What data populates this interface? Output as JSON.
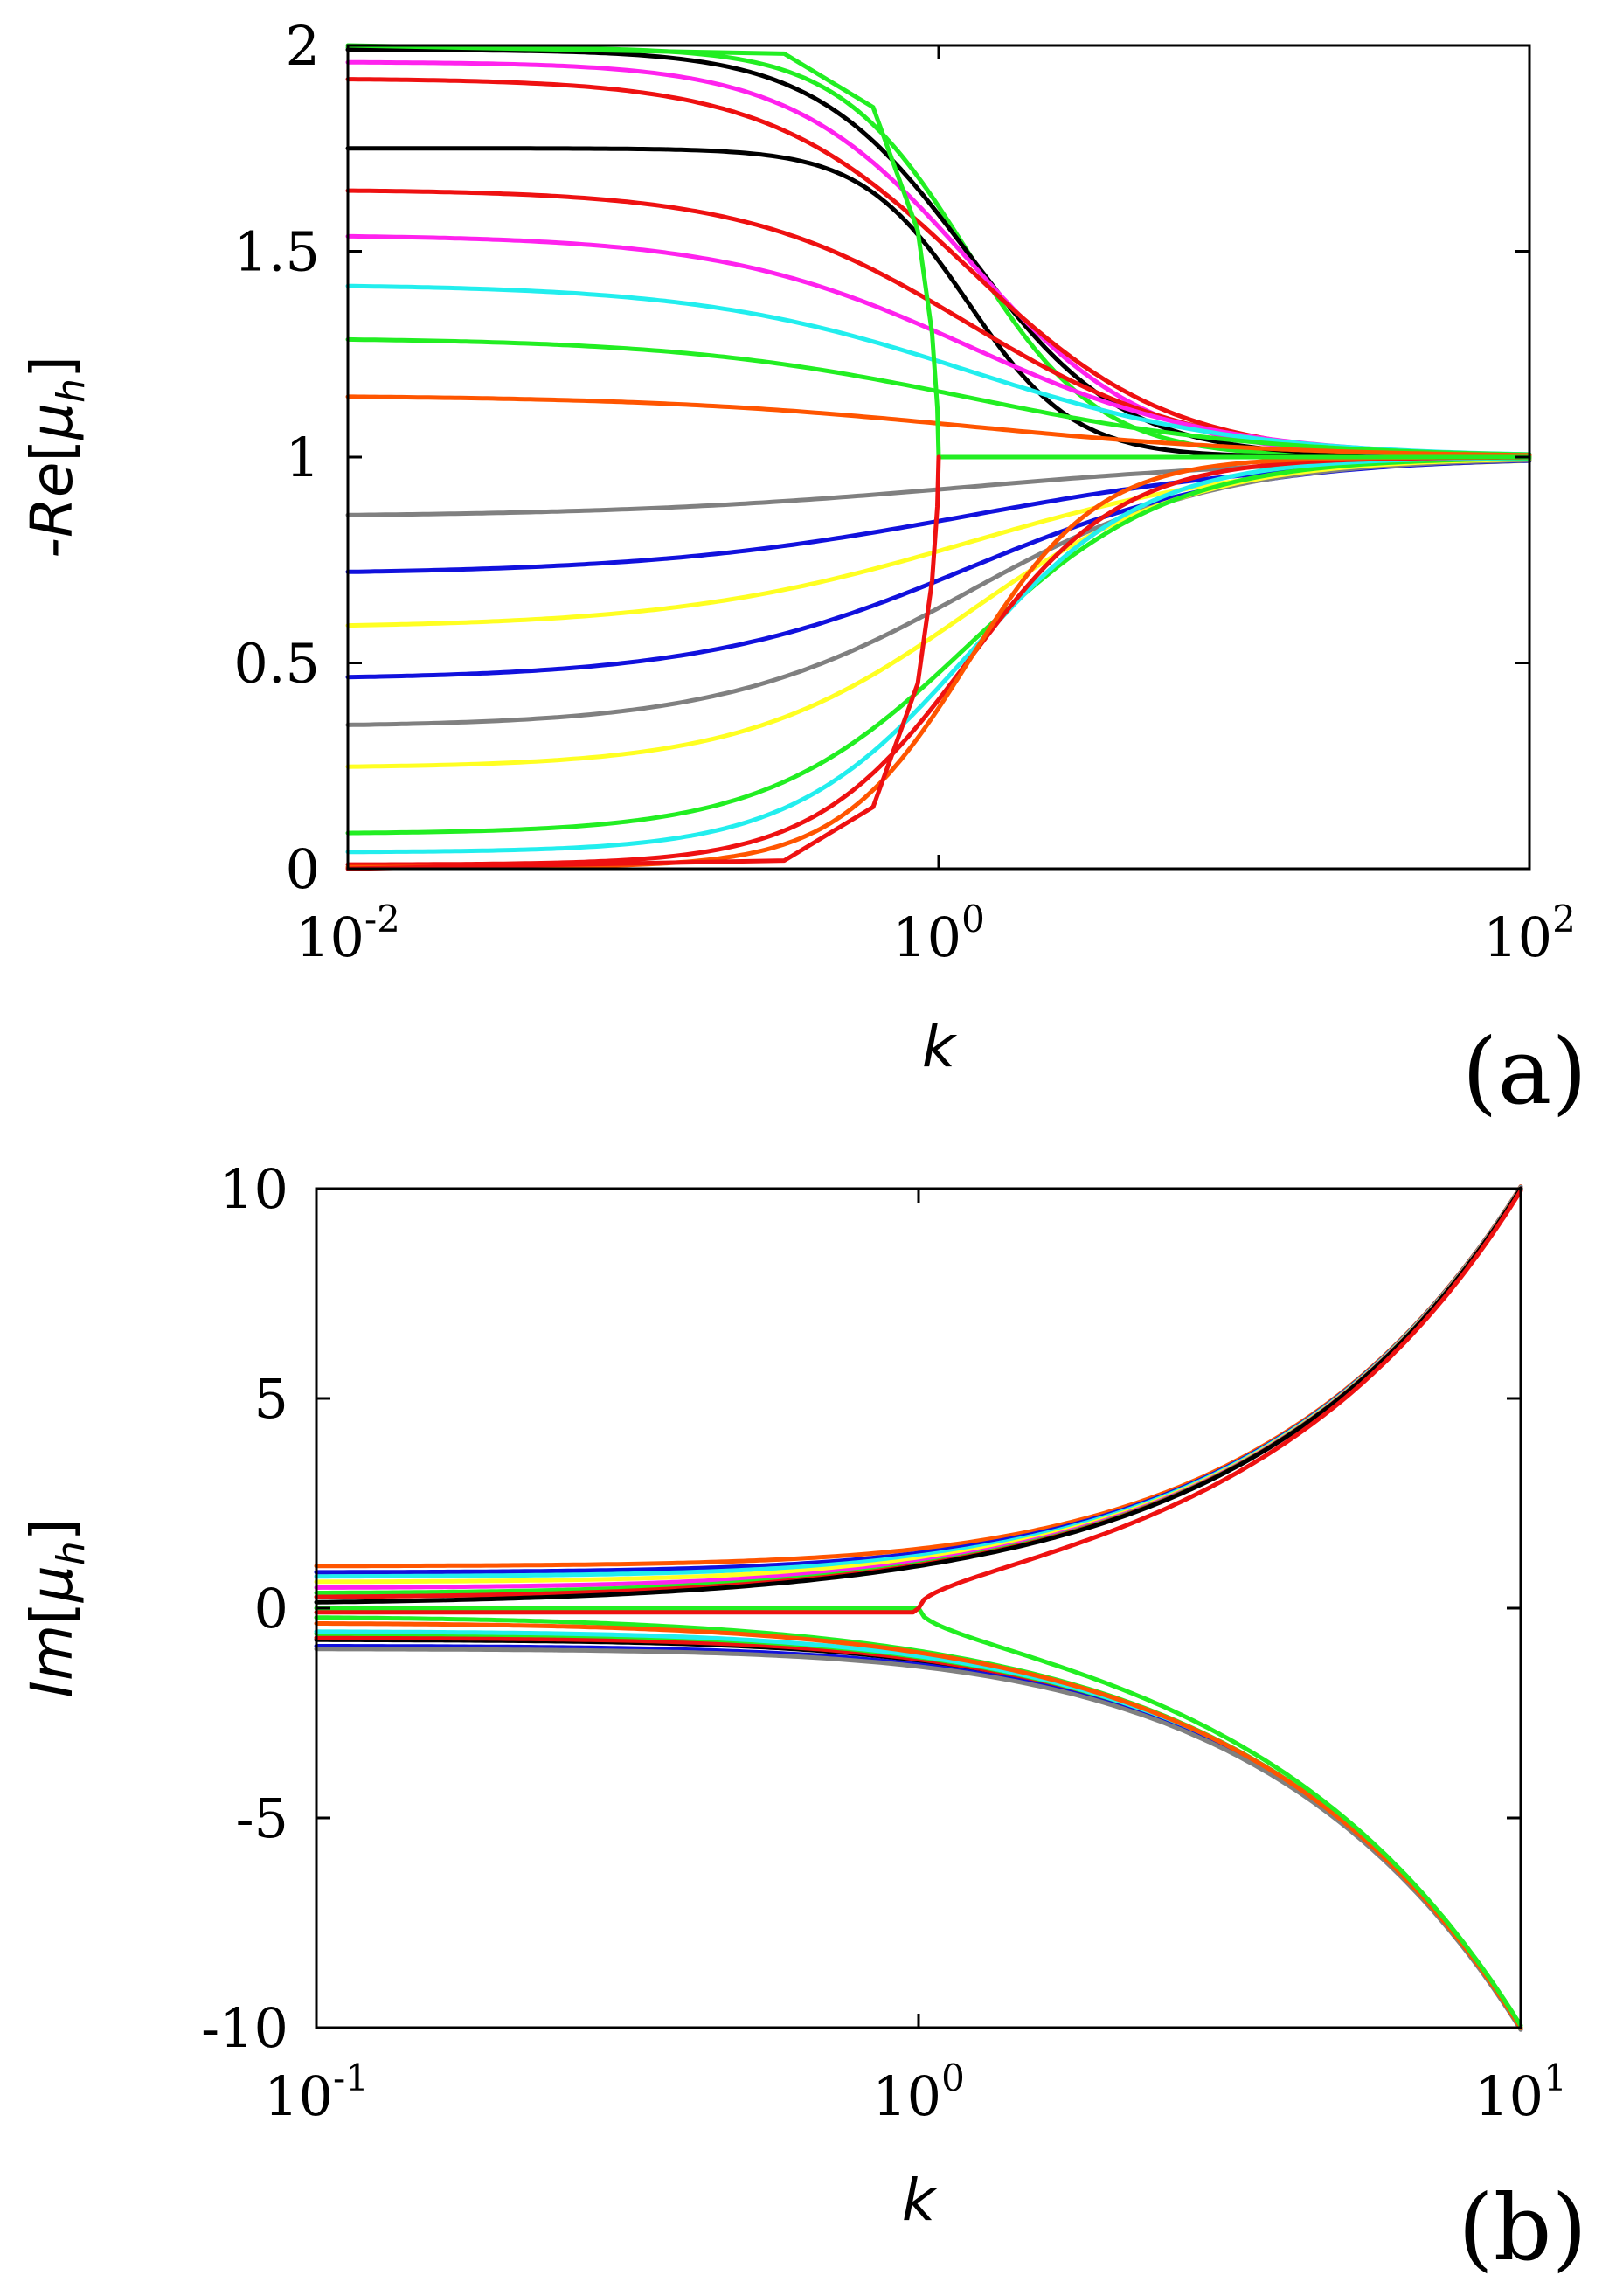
{
  "colors": {
    "black": "#000000",
    "red": "#ee1111",
    "orange": "#ff5500",
    "magenta": "#ff22ee",
    "cyan": "#22eeee",
    "green": "#22ee22",
    "blue": "#1111dd",
    "yellow": "#ffff22",
    "gray": "#808080"
  },
  "chart_data": [
    {
      "type": "line",
      "panel_label": "(a)",
      "title": "",
      "xlabel": "k",
      "ylabel": "-Re[μh]",
      "ylabel_main": "-Re",
      "ylabel_open": "[",
      "ylabel_mu": "μ",
      "ylabel_sub": "h",
      "ylabel_close": "]",
      "xscale": "log",
      "xlim": [
        0.01,
        100
      ],
      "ylim": [
        0,
        2
      ],
      "x_ticks": [
        {
          "base": "10",
          "exp": "-2",
          "value": 0.01
        },
        {
          "base": "10",
          "exp": "0",
          "value": 1
        },
        {
          "base": "10",
          "exp": "2",
          "value": 100
        }
      ],
      "y_ticks": [
        {
          "label": "0",
          "value": 0
        },
        {
          "label": "0.5",
          "value": 0.5
        },
        {
          "label": "1",
          "value": 1
        },
        {
          "label": "1.5",
          "value": 1.5
        },
        {
          "label": "2",
          "value": 2
        }
      ],
      "series": [
        {
          "name": "green-a",
          "color": "green",
          "start": 1.995,
          "end": 1.0,
          "width": 0.22
        },
        {
          "name": "black-a",
          "color": "black",
          "start": 1.99,
          "end": 1.0,
          "width": 0.26
        },
        {
          "name": "magenta-a",
          "color": "magenta",
          "start": 1.96,
          "end": 1.0,
          "width": 0.3
        },
        {
          "name": "red-a",
          "color": "red",
          "start": 1.92,
          "end": 1.0,
          "width": 0.34
        },
        {
          "name": "black-b",
          "color": "black",
          "start": 1.75,
          "end": 1.0,
          "width": 0.18
        },
        {
          "name": "red-b",
          "color": "red",
          "start": 1.65,
          "end": 1.0,
          "width": 0.38
        },
        {
          "name": "magenta-b",
          "color": "magenta",
          "start": 1.54,
          "end": 1.0,
          "width": 0.42
        },
        {
          "name": "cyan-a",
          "color": "cyan",
          "start": 1.42,
          "end": 1.0,
          "width": 0.46
        },
        {
          "name": "green-b",
          "color": "green",
          "start": 1.29,
          "end": 1.0,
          "width": 0.5
        },
        {
          "name": "orange-a",
          "color": "orange",
          "start": 1.15,
          "end": 1.0,
          "width": 0.55
        },
        {
          "name": "gray-a",
          "color": "gray",
          "start": 0.855,
          "end": 1.0,
          "width": 0.6
        },
        {
          "name": "blue-a",
          "color": "blue",
          "start": 0.715,
          "end": 1.0,
          "width": 0.55
        },
        {
          "name": "yellow-a",
          "color": "yellow",
          "start": 0.585,
          "end": 1.0,
          "width": 0.5
        },
        {
          "name": "blue-b",
          "color": "blue",
          "start": 0.46,
          "end": 1.0,
          "width": 0.46
        },
        {
          "name": "gray-b",
          "color": "gray",
          "start": 0.345,
          "end": 1.0,
          "width": 0.42
        },
        {
          "name": "yellow-b",
          "color": "yellow",
          "start": 0.245,
          "end": 1.0,
          "width": 0.38
        },
        {
          "name": "green-c",
          "color": "green",
          "start": 0.085,
          "end": 1.0,
          "width": 0.34
        },
        {
          "name": "cyan-b",
          "color": "cyan",
          "start": 0.04,
          "end": 1.0,
          "width": 0.3
        },
        {
          "name": "red-c",
          "color": "red",
          "start": 0.01,
          "end": 1.0,
          "width": 0.26
        },
        {
          "name": "orange-b",
          "color": "orange",
          "start": 0.004,
          "end": 1.0,
          "width": 0.22
        },
        {
          "name": "green-bifurcation",
          "color": "green",
          "points": [
            [
              0.01,
              2.0
            ],
            [
              0.3,
              1.98
            ],
            [
              0.6,
              1.85
            ],
            [
              0.85,
              1.55
            ],
            [
              0.95,
              1.3
            ],
            [
              0.99,
              1.12
            ],
            [
              1.0,
              1.0
            ],
            [
              100,
              1.0
            ]
          ]
        },
        {
          "name": "red-bifurcation",
          "color": "red",
          "points": [
            [
              0.01,
              0.0
            ],
            [
              0.3,
              0.02
            ],
            [
              0.6,
              0.15
            ],
            [
              0.85,
              0.45
            ],
            [
              0.95,
              0.7
            ],
            [
              0.99,
              0.88
            ],
            [
              1.0,
              1.0
            ]
          ]
        }
      ]
    },
    {
      "type": "line",
      "panel_label": "(b)",
      "title": "",
      "xlabel": "k",
      "ylabel": "Im[μh]",
      "ylabel_main": "Im",
      "ylabel_open": "[",
      "ylabel_mu": "μ",
      "ylabel_sub": "h",
      "ylabel_close": "]",
      "xscale": "log",
      "xlim": [
        0.1,
        10
      ],
      "ylim": [
        -10,
        10
      ],
      "x_ticks": [
        {
          "base": "10",
          "exp": "-1",
          "value": 0.1
        },
        {
          "base": "10",
          "exp": "0",
          "value": 1
        },
        {
          "base": "10",
          "exp": "1",
          "value": 10
        }
      ],
      "y_ticks": [
        {
          "label": "-10",
          "value": -10
        },
        {
          "label": "-5",
          "value": -5
        },
        {
          "label": "0",
          "value": 0
        },
        {
          "label": "5",
          "value": 5
        },
        {
          "label": "10",
          "value": 10
        }
      ],
      "series": [
        {
          "name": "orange-up",
          "color": "orange",
          "offset": 1.0
        },
        {
          "name": "blue-up",
          "color": "blue",
          "offset": 0.85
        },
        {
          "name": "cyan-up",
          "color": "cyan",
          "offset": 0.75
        },
        {
          "name": "yellow-up",
          "color": "yellow",
          "offset": 0.62
        },
        {
          "name": "magenta-up",
          "color": "magenta",
          "offset": 0.48
        },
        {
          "name": "green-up",
          "color": "green",
          "offset": 0.35
        },
        {
          "name": "red-up",
          "color": "red",
          "offset": 0.25
        },
        {
          "name": "black-up",
          "color": "black",
          "offset": 0.1
        },
        {
          "name": "black-down",
          "color": "black",
          "offset": -0.75
        },
        {
          "name": "red-down",
          "color": "red",
          "offset": -0.7
        },
        {
          "name": "green-down",
          "color": "green",
          "offset": -0.6
        },
        {
          "name": "cyan-down",
          "color": "cyan",
          "offset": -0.55
        },
        {
          "name": "blue-down",
          "color": "blue",
          "offset": -0.9
        },
        {
          "name": "gray-down",
          "color": "gray",
          "offset": -0.97
        },
        {
          "name": "green-level",
          "color": "green",
          "offset": -0.2
        },
        {
          "name": "orange-level",
          "color": "orange",
          "offset": -0.35
        },
        {
          "name": "green-branch",
          "color": "green",
          "branch": true
        },
        {
          "name": "red-branch",
          "color": "red",
          "branch_flat": -0.1
        }
      ]
    }
  ]
}
